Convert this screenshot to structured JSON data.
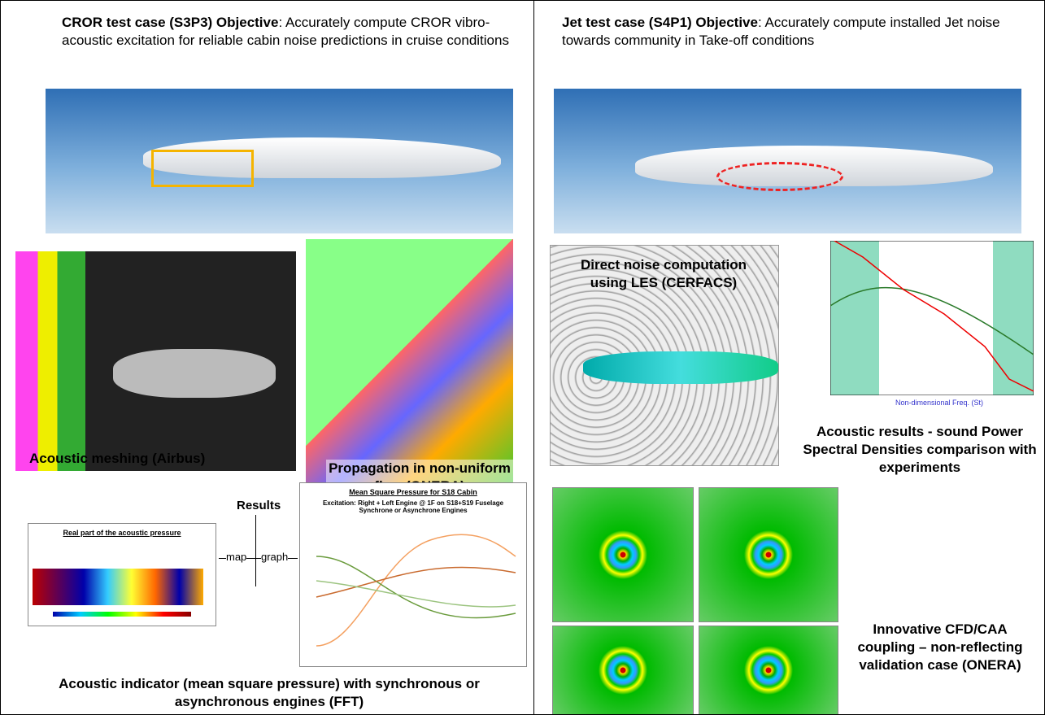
{
  "left": {
    "heading_bold": "CROR test case (S3P3) Objective",
    "heading_rest": ": Accurately compute CROR vibro-acoustic excitation for reliable cabin noise predictions in cruise conditions",
    "mesh_caption": "Acoustic meshing (Airbus)",
    "propagation_caption": "Propagation in non-uniform flow (ONERA)",
    "results_label": "Results",
    "map_label": "map",
    "graph_label": "graph",
    "map_title": "Real part of the acoustic pressure",
    "graph_title": "Mean Square Pressure for S18 Cabin",
    "graph_subtitle": "Excitation: Right + Left Engine @ 1F on S18+S19 Fuselage Synchrone or Asynchrone Engines",
    "bottom_caption": "Acoustic indicator (mean square pressure) with synchronous or asynchronous engines (FFT)"
  },
  "right": {
    "heading_bold": "Jet test case (S4P1) Objective",
    "heading_rest": ": Accurately compute installed Jet noise towards community in Take-off conditions",
    "les_caption": "Direct noise computation using LES (CERFACS)",
    "psd_caption": "Acoustic results - sound Power Spectral Densities comparison with experiments",
    "psd_xlabel": "Non-dimensional  Freq. (St)",
    "coupling_caption": "Innovative CFD/CAA coupling – non-reflecting validation case (ONERA)"
  }
}
